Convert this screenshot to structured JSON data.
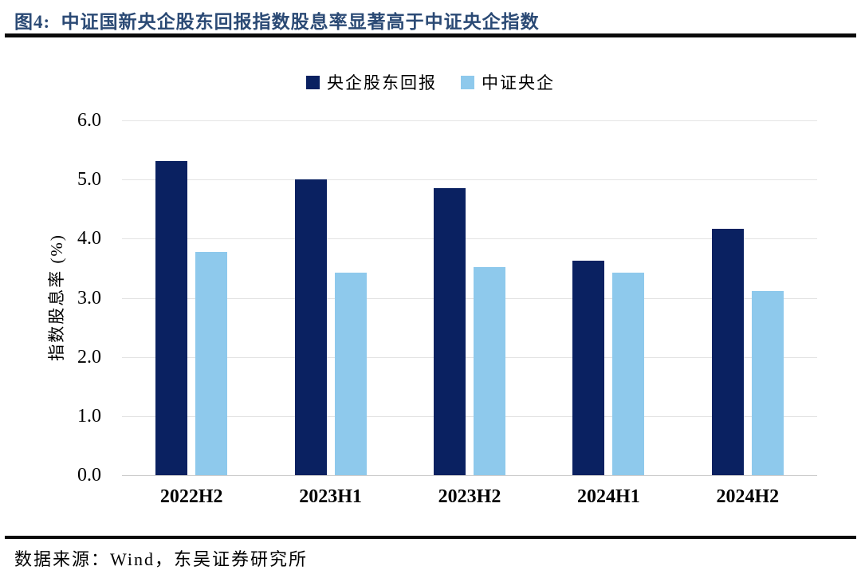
{
  "header": {
    "title": "图4:  中证国新央企股东回报指数股息率显著高于中证央企指数",
    "accent_color": "#2b4a75"
  },
  "chart_data": {
    "type": "bar",
    "title": "中证国新央企股东回报指数股息率显著高于中证央企指数",
    "categories": [
      "2022H2",
      "2023H1",
      "2023H2",
      "2024H1",
      "2024H2"
    ],
    "series": [
      {
        "name": "央企股东回报",
        "color": "#0a2161",
        "values": [
          5.31,
          5.0,
          4.86,
          3.63,
          4.17
        ]
      },
      {
        "name": "中证央企",
        "color": "#8ec9ec",
        "values": [
          3.77,
          3.43,
          3.52,
          3.43,
          3.12
        ]
      }
    ],
    "xlabel": "",
    "ylabel": "指数股息率 (%)",
    "ylim": [
      0,
      6
    ],
    "ytick_step": 1,
    "ytick_decimals": 1,
    "grid": "horizontal",
    "legend_position": "top-center",
    "gridline_color": "#e4e4e4",
    "baseline_color": "#cccccc"
  },
  "footer": {
    "source": "数据来源：Wind，东吴证券研究所"
  }
}
